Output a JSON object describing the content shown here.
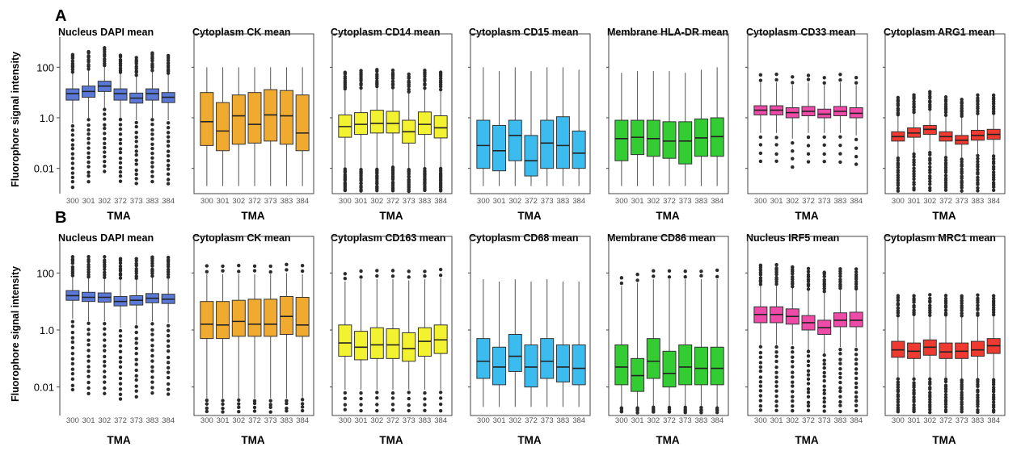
{
  "figure": {
    "ylabel": "Fluorophore signal intensity",
    "yticks": [
      "100",
      "1.0",
      "0.01"
    ],
    "rows": [
      {
        "letter": "A"
      },
      {
        "letter": "B"
      }
    ]
  },
  "chart_data": [
    {
      "type": "box",
      "row": "A",
      "title": "Nucleus DAPI mean",
      "xlabel": "TMA",
      "categories": [
        "300",
        "301",
        "302",
        "372",
        "373",
        "383",
        "384"
      ],
      "yscale": "log",
      "ylim": [
        0.001,
        1000
      ],
      "color": "#5a78d6",
      "y_ticks_shown": true,
      "outlier_density": "dense",
      "boxes": [
        {
          "median": 9,
          "q1": 5,
          "q3": 14,
          "whislo": 0.6,
          "whishi": 60
        },
        {
          "median": 11,
          "q1": 6.5,
          "q3": 18,
          "whislo": 1,
          "whishi": 80
        },
        {
          "median": 18,
          "q1": 11,
          "q3": 28,
          "whislo": 2.5,
          "whishi": 110
        },
        {
          "median": 9,
          "q1": 5,
          "q3": 14,
          "whislo": 1,
          "whishi": 55
        },
        {
          "median": 6,
          "q1": 3.8,
          "q3": 9.5,
          "whislo": 0.8,
          "whishi": 45
        },
        {
          "median": 9,
          "q1": 5,
          "q3": 14,
          "whislo": 1,
          "whishi": 70
        },
        {
          "median": 6.5,
          "q1": 4,
          "q3": 10,
          "whislo": 0.8,
          "whishi": 50
        }
      ]
    },
    {
      "type": "box",
      "row": "A",
      "title": "Cytoplasm CK mean",
      "xlabel": "TMA",
      "categories": [
        "300",
        "301",
        "302",
        "372",
        "373",
        "383",
        "384"
      ],
      "yscale": "log",
      "ylim": [
        0.001,
        1000
      ],
      "color": "#f0aa30",
      "y_ticks_shown": false,
      "outlier_density": "none",
      "boxes": [
        {
          "median": 0.7,
          "q1": 0.08,
          "q3": 10,
          "whislo": 0.002,
          "whishi": 100
        },
        {
          "median": 0.3,
          "q1": 0.05,
          "q3": 4,
          "whislo": 0.002,
          "whishi": 100
        },
        {
          "median": 1.2,
          "q1": 0.09,
          "q3": 8,
          "whislo": 0.002,
          "whishi": 100
        },
        {
          "median": 0.55,
          "q1": 0.1,
          "q3": 10,
          "whislo": 0.002,
          "whishi": 100
        },
        {
          "median": 1.3,
          "q1": 0.12,
          "q3": 13,
          "whislo": 0.002,
          "whishi": 100
        },
        {
          "median": 1.2,
          "q1": 0.09,
          "q3": 12,
          "whislo": 0.002,
          "whishi": 100
        },
        {
          "median": 0.25,
          "q1": 0.05,
          "q3": 8,
          "whislo": 0.002,
          "whishi": 100
        }
      ]
    },
    {
      "type": "box",
      "row": "A",
      "title": "Cytoplasm CD14 mean",
      "xlabel": "TMA",
      "categories": [
        "300",
        "301",
        "302",
        "372",
        "373",
        "383",
        "384"
      ],
      "yscale": "log",
      "ylim": [
        0.001,
        1000
      ],
      "color": "#f2f230",
      "y_ticks_shown": false,
      "outlier_density": "dense",
      "boxes": [
        {
          "median": 0.45,
          "q1": 0.17,
          "q3": 1.3,
          "whislo": 0.01,
          "whishi": 12
        },
        {
          "median": 0.55,
          "q1": 0.22,
          "q3": 1.6,
          "whislo": 0.01,
          "whishi": 14
        },
        {
          "median": 0.6,
          "q1": 0.25,
          "q3": 2,
          "whislo": 0.01,
          "whishi": 15
        },
        {
          "median": 0.6,
          "q1": 0.25,
          "q3": 1.8,
          "whislo": 0.012,
          "whishi": 14
        },
        {
          "median": 0.28,
          "q1": 0.1,
          "q3": 0.8,
          "whislo": 0.01,
          "whishi": 10
        },
        {
          "median": 0.55,
          "q1": 0.22,
          "q3": 1.7,
          "whislo": 0.01,
          "whishi": 14
        },
        {
          "median": 0.4,
          "q1": 0.16,
          "q3": 1.2,
          "whislo": 0.01,
          "whishi": 12
        }
      ]
    },
    {
      "type": "box",
      "row": "A",
      "title": "Cytoplasm CD15 mean",
      "xlabel": "TMA",
      "categories": [
        "300",
        "301",
        "302",
        "372",
        "373",
        "383",
        "384"
      ],
      "yscale": "log",
      "ylim": [
        0.001,
        1000
      ],
      "color": "#3cbcee",
      "y_ticks_shown": false,
      "outlier_density": "none",
      "boxes": [
        {
          "median": 0.08,
          "q1": 0.01,
          "q3": 0.8,
          "whislo": 0.002,
          "whishi": 100
        },
        {
          "median": 0.05,
          "q1": 0.008,
          "q3": 0.5,
          "whislo": 0.002,
          "whishi": 70
        },
        {
          "median": 0.2,
          "q1": 0.02,
          "q3": 0.8,
          "whislo": 0.002,
          "whishi": 100
        },
        {
          "median": 0.02,
          "q1": 0.005,
          "q3": 0.2,
          "whislo": 0.002,
          "whishi": 70
        },
        {
          "median": 0.1,
          "q1": 0.01,
          "q3": 0.8,
          "whislo": 0.002,
          "whishi": 100
        },
        {
          "median": 0.08,
          "q1": 0.01,
          "q3": 1.1,
          "whislo": 0.002,
          "whishi": 100
        },
        {
          "median": 0.04,
          "q1": 0.01,
          "q3": 0.3,
          "whislo": 0.002,
          "whishi": 80
        }
      ]
    },
    {
      "type": "box",
      "row": "A",
      "title": "Membrane HLA-DR mean",
      "xlabel": "TMA",
      "categories": [
        "300",
        "301",
        "302",
        "372",
        "373",
        "383",
        "384"
      ],
      "yscale": "log",
      "ylim": [
        0.001,
        1000
      ],
      "color": "#33cc33",
      "y_ticks_shown": false,
      "outlier_density": "none",
      "boxes": [
        {
          "median": 0.15,
          "q1": 0.02,
          "q3": 0.8,
          "whislo": 0.002,
          "whishi": 60
        },
        {
          "median": 0.17,
          "q1": 0.035,
          "q3": 0.8,
          "whislo": 0.002,
          "whishi": 70
        },
        {
          "median": 0.15,
          "q1": 0.03,
          "q3": 0.8,
          "whislo": 0.002,
          "whishi": 70
        },
        {
          "median": 0.12,
          "q1": 0.025,
          "q3": 0.7,
          "whislo": 0.002,
          "whishi": 70
        },
        {
          "median": 0.12,
          "q1": 0.015,
          "q3": 0.7,
          "whislo": 0.002,
          "whishi": 60
        },
        {
          "median": 0.16,
          "q1": 0.03,
          "q3": 0.9,
          "whislo": 0.002,
          "whishi": 80
        },
        {
          "median": 0.18,
          "q1": 0.03,
          "q3": 1.0,
          "whislo": 0.002,
          "whishi": 100
        }
      ]
    },
    {
      "type": "box",
      "row": "A",
      "title": "Cytoplasm CD33 mean",
      "xlabel": "TMA",
      "categories": [
        "300",
        "301",
        "302",
        "372",
        "373",
        "383",
        "384"
      ],
      "yscale": "log",
      "ylim": [
        0.001,
        1000
      ],
      "color": "#ee4aa8",
      "y_ticks_shown": false,
      "outlier_density": "sparse",
      "boxes": [
        {
          "median": 2,
          "q1": 1.3,
          "q3": 3,
          "whislo": 0.25,
          "whishi": 25
        },
        {
          "median": 2,
          "q1": 1.3,
          "q3": 3,
          "whislo": 0.25,
          "whishi": 25
        },
        {
          "median": 1.6,
          "q1": 1,
          "q3": 2.5,
          "whislo": 0.15,
          "whishi": 20
        },
        {
          "median": 1.8,
          "q1": 1.2,
          "q3": 2.8,
          "whislo": 0.25,
          "whishi": 25
        },
        {
          "median": 1.4,
          "q1": 1,
          "q3": 2.2,
          "whislo": 0.25,
          "whishi": 20
        },
        {
          "median": 1.8,
          "q1": 1.2,
          "q3": 2.8,
          "whislo": 0.25,
          "whishi": 25
        },
        {
          "median": 1.5,
          "q1": 1,
          "q3": 2.5,
          "whislo": 0.2,
          "whishi": 20
        }
      ]
    },
    {
      "type": "box",
      "row": "A",
      "title": "Cytoplasm ARG1 mean",
      "xlabel": "TMA",
      "categories": [
        "300",
        "301",
        "302",
        "372",
        "373",
        "383",
        "384"
      ],
      "yscale": "log",
      "ylim": [
        0.001,
        1000
      ],
      "color": "#ee3a30",
      "y_ticks_shown": false,
      "outlier_density": "dense",
      "boxes": [
        {
          "median": 0.18,
          "q1": 0.12,
          "q3": 0.28,
          "whislo": 0.03,
          "whishi": 1.2
        },
        {
          "median": 0.25,
          "q1": 0.17,
          "q3": 0.4,
          "whislo": 0.04,
          "whishi": 1.5
        },
        {
          "median": 0.35,
          "q1": 0.22,
          "q3": 0.5,
          "whislo": 0.05,
          "whishi": 2
        },
        {
          "median": 0.18,
          "q1": 0.12,
          "q3": 0.28,
          "whislo": 0.03,
          "whishi": 1.2
        },
        {
          "median": 0.13,
          "q1": 0.09,
          "q3": 0.2,
          "whislo": 0.025,
          "whishi": 1
        },
        {
          "median": 0.2,
          "q1": 0.13,
          "q3": 0.32,
          "whislo": 0.035,
          "whishi": 1.4
        },
        {
          "median": 0.22,
          "q1": 0.14,
          "q3": 0.35,
          "whislo": 0.035,
          "whishi": 1.4
        }
      ]
    },
    {
      "type": "box",
      "row": "B",
      "title": "Nucleus DAPI mean",
      "xlabel": "TMA",
      "categories": [
        "300",
        "301",
        "302",
        "372",
        "373",
        "383",
        "384"
      ],
      "yscale": "log",
      "ylim": [
        0.001,
        1000
      ],
      "color": "#5a78d6",
      "y_ticks_shown": true,
      "outlier_density": "dense",
      "boxes": [
        {
          "median": 16,
          "q1": 11,
          "q3": 24,
          "whislo": 2.5,
          "whishi": 70
        },
        {
          "median": 14,
          "q1": 10,
          "q3": 21,
          "whislo": 2,
          "whishi": 65
        },
        {
          "median": 14,
          "q1": 9.5,
          "q3": 20,
          "whislo": 2,
          "whishi": 65
        },
        {
          "median": 10,
          "q1": 7,
          "q3": 15,
          "whislo": 1.2,
          "whishi": 60
        },
        {
          "median": 11,
          "q1": 7.5,
          "q3": 16,
          "whislo": 1.5,
          "whishi": 60
        },
        {
          "median": 13,
          "q1": 9,
          "q3": 19,
          "whislo": 2,
          "whishi": 70
        },
        {
          "median": 12,
          "q1": 8.5,
          "q3": 18,
          "whislo": 1.8,
          "whishi": 65
        }
      ]
    },
    {
      "type": "box",
      "row": "B",
      "title": "Cytoplasm CK mean",
      "xlabel": "TMA",
      "categories": [
        "300",
        "301",
        "302",
        "372",
        "373",
        "383",
        "384"
      ],
      "yscale": "log",
      "ylim": [
        0.001,
        1000
      ],
      "color": "#f0aa30",
      "y_ticks_shown": false,
      "outlier_density": "sparse",
      "boxes": [
        {
          "median": 1.6,
          "q1": 0.5,
          "q3": 10,
          "whislo": 0.004,
          "whishi": 90
        },
        {
          "median": 1.5,
          "q1": 0.5,
          "q3": 10,
          "whislo": 0.004,
          "whishi": 90
        },
        {
          "median": 2,
          "q1": 0.6,
          "q3": 11,
          "whislo": 0.004,
          "whishi": 90
        },
        {
          "median": 1.6,
          "q1": 0.6,
          "q3": 12,
          "whislo": 0.004,
          "whishi": 90
        },
        {
          "median": 1.6,
          "q1": 0.6,
          "q3": 12,
          "whislo": 0.004,
          "whishi": 90
        },
        {
          "median": 3,
          "q1": 0.7,
          "q3": 15,
          "whislo": 0.004,
          "whishi": 100
        },
        {
          "median": 1.5,
          "q1": 0.6,
          "q3": 14,
          "whislo": 0.004,
          "whishi": 90
        }
      ]
    },
    {
      "type": "box",
      "row": "B",
      "title": "Cytoplasm CD163 mean",
      "xlabel": "TMA",
      "categories": [
        "300",
        "301",
        "302",
        "372",
        "373",
        "383",
        "384"
      ],
      "yscale": "log",
      "ylim": [
        0.001,
        1000
      ],
      "color": "#f2f230",
      "y_ticks_shown": false,
      "outlier_density": "sparse",
      "boxes": [
        {
          "median": 0.35,
          "q1": 0.12,
          "q3": 1.5,
          "whislo": 0.008,
          "whishi": 50
        },
        {
          "median": 0.25,
          "q1": 0.09,
          "q3": 0.9,
          "whislo": 0.008,
          "whishi": 60
        },
        {
          "median": 0.3,
          "q1": 0.1,
          "q3": 1.2,
          "whislo": 0.008,
          "whishi": 60
        },
        {
          "median": 0.3,
          "q1": 0.1,
          "q3": 1.1,
          "whislo": 0.008,
          "whishi": 60
        },
        {
          "median": 0.22,
          "q1": 0.08,
          "q3": 0.8,
          "whislo": 0.008,
          "whishi": 55
        },
        {
          "median": 0.4,
          "q1": 0.12,
          "q3": 1.2,
          "whislo": 0.008,
          "whishi": 60
        },
        {
          "median": 0.45,
          "q1": 0.15,
          "q3": 1.5,
          "whislo": 0.008,
          "whishi": 65
        }
      ]
    },
    {
      "type": "box",
      "row": "B",
      "title": "Cytoplasm CD68 mean",
      "xlabel": "TMA",
      "categories": [
        "300",
        "301",
        "302",
        "372",
        "373",
        "383",
        "384"
      ],
      "yscale": "log",
      "ylim": [
        0.001,
        1000
      ],
      "color": "#3cbcee",
      "y_ticks_shown": false,
      "outlier_density": "none",
      "boxes": [
        {
          "median": 0.08,
          "q1": 0.02,
          "q3": 0.5,
          "whislo": 0.002,
          "whishi": 60
        },
        {
          "median": 0.05,
          "q1": 0.012,
          "q3": 0.25,
          "whislo": 0.002,
          "whishi": 50
        },
        {
          "median": 0.12,
          "q1": 0.035,
          "q3": 0.7,
          "whislo": 0.002,
          "whishi": 60
        },
        {
          "median": 0.05,
          "q1": 0.01,
          "q3": 0.3,
          "whislo": 0.002,
          "whishi": 50
        },
        {
          "median": 0.08,
          "q1": 0.02,
          "q3": 0.5,
          "whislo": 0.002,
          "whishi": 60
        },
        {
          "median": 0.05,
          "q1": 0.015,
          "q3": 0.3,
          "whislo": 0.002,
          "whishi": 50
        },
        {
          "median": 0.045,
          "q1": 0.012,
          "q3": 0.3,
          "whislo": 0.002,
          "whishi": 50
        }
      ]
    },
    {
      "type": "box",
      "row": "B",
      "title": "Membrane CD86 mean",
      "xlabel": "TMA",
      "categories": [
        "300",
        "301",
        "302",
        "372",
        "373",
        "383",
        "384"
      ],
      "yscale": "log",
      "ylim": [
        0.001,
        1000
      ],
      "color": "#33cc33",
      "y_ticks_shown": false,
      "outlier_density": "sparse",
      "boxes": [
        {
          "median": 0.05,
          "q1": 0.012,
          "q3": 0.3,
          "whislo": 0.002,
          "whishi": 35
        },
        {
          "median": 0.025,
          "q1": 0.007,
          "q3": 0.1,
          "whislo": 0.002,
          "whishi": 45
        },
        {
          "median": 0.08,
          "q1": 0.02,
          "q3": 0.5,
          "whislo": 0.002,
          "whishi": 60
        },
        {
          "median": 0.03,
          "q1": 0.01,
          "q3": 0.18,
          "whislo": 0.002,
          "whishi": 60
        },
        {
          "median": 0.05,
          "q1": 0.012,
          "q3": 0.3,
          "whislo": 0.002,
          "whishi": 60
        },
        {
          "median": 0.045,
          "q1": 0.012,
          "q3": 0.25,
          "whislo": 0.002,
          "whishi": 60
        },
        {
          "median": 0.045,
          "q1": 0.012,
          "q3": 0.25,
          "whislo": 0.002,
          "whishi": 60
        }
      ]
    },
    {
      "type": "box",
      "row": "B",
      "title": "Nucleus IRF5 mean",
      "xlabel": "TMA",
      "categories": [
        "300",
        "301",
        "302",
        "372",
        "373",
        "383",
        "384"
      ],
      "yscale": "log",
      "ylim": [
        0.001,
        1000
      ],
      "color": "#ee4aa8",
      "y_ticks_shown": false,
      "outlier_density": "dense",
      "boxes": [
        {
          "median": 3.5,
          "q1": 1.8,
          "q3": 6.5,
          "whislo": 0.3,
          "whishi": 35
        },
        {
          "median": 3.5,
          "q1": 1.8,
          "q3": 6.5,
          "whislo": 0.3,
          "whishi": 35
        },
        {
          "median": 3,
          "q1": 1.6,
          "q3": 5.5,
          "whislo": 0.3,
          "whishi": 30
        },
        {
          "median": 1.8,
          "q1": 1,
          "q3": 3.2,
          "whislo": 0.2,
          "whishi": 25
        },
        {
          "median": 1.2,
          "q1": 0.7,
          "q3": 2.2,
          "whislo": 0.15,
          "whishi": 20
        },
        {
          "median": 2.2,
          "q1": 1.3,
          "q3": 4,
          "whislo": 0.25,
          "whishi": 25
        },
        {
          "median": 2.2,
          "q1": 1.3,
          "q3": 4.2,
          "whislo": 0.25,
          "whishi": 25
        }
      ]
    },
    {
      "type": "box",
      "row": "B",
      "title": "Cytoplasm MRC1 mean",
      "xlabel": "TMA",
      "categories": [
        "300",
        "301",
        "302",
        "372",
        "373",
        "383",
        "384"
      ],
      "yscale": "log",
      "ylim": [
        0.001,
        1000
      ],
      "color": "#ee3a30",
      "y_ticks_shown": false,
      "outlier_density": "dense",
      "boxes": [
        {
          "median": 0.2,
          "q1": 0.11,
          "q3": 0.4,
          "whislo": 0.02,
          "whishi": 3
        },
        {
          "median": 0.18,
          "q1": 0.1,
          "q3": 0.35,
          "whislo": 0.02,
          "whishi": 3
        },
        {
          "median": 0.25,
          "q1": 0.13,
          "q3": 0.45,
          "whislo": 0.02,
          "whishi": 3
        },
        {
          "median": 0.17,
          "q1": 0.1,
          "q3": 0.35,
          "whislo": 0.02,
          "whishi": 3
        },
        {
          "median": 0.18,
          "q1": 0.1,
          "q3": 0.35,
          "whislo": 0.02,
          "whishi": 3
        },
        {
          "median": 0.2,
          "q1": 0.12,
          "q3": 0.4,
          "whislo": 0.02,
          "whishi": 3
        },
        {
          "median": 0.28,
          "q1": 0.15,
          "q3": 0.5,
          "whislo": 0.02,
          "whishi": 3
        }
      ]
    }
  ]
}
